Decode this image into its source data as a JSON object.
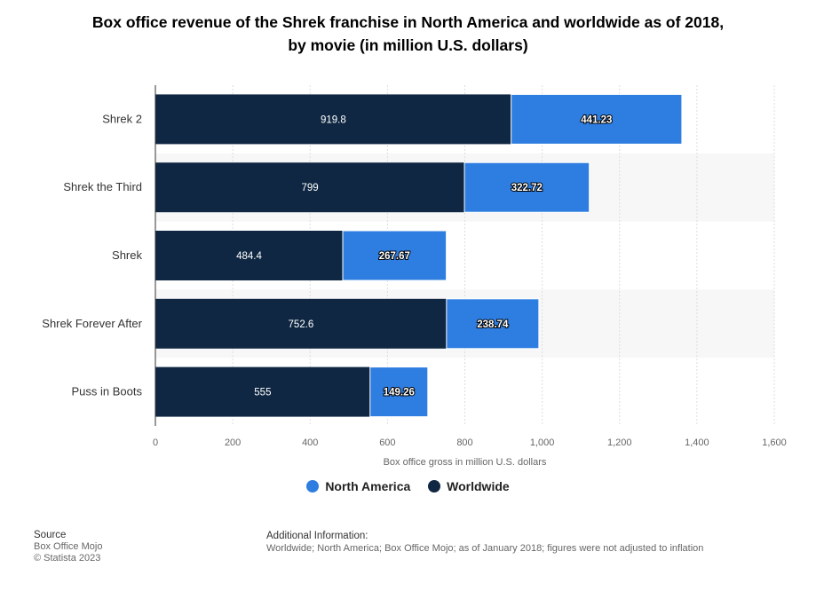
{
  "title_line1": "Box office revenue of the Shrek franchise in North America and worldwide as of 2018,",
  "title_line2": "by movie (in million U.S. dollars)",
  "legend": {
    "north_america": "North America",
    "worldwide": "Worldwide"
  },
  "footer": {
    "source_head": "Source",
    "source_name": "Box Office Mojo",
    "copyright": "© Statista 2023",
    "info_head": "Additional Information:",
    "info_text": "Worldwide; North America; Box Office Mojo; as of January 2018; figures were not adjusted to inflation"
  },
  "colors": {
    "worldwide": "#0f2742",
    "north_america": "#2e7de0",
    "band": "#f7f7f7",
    "grid": "#dddddd"
  },
  "chart_data": {
    "type": "bar",
    "orientation": "horizontal",
    "stacked": true,
    "categories": [
      "Shrek 2",
      "Shrek the Third",
      "Shrek",
      "Shrek Forever After",
      "Puss in Boots"
    ],
    "series": [
      {
        "name": "Worldwide",
        "values": [
          919.8,
          799,
          484.4,
          752.6,
          555
        ]
      },
      {
        "name": "North America",
        "values": [
          441.23,
          322.72,
          267.67,
          238.74,
          149.26
        ]
      }
    ],
    "xlabel": "Box office gross in million U.S. dollars",
    "ylabel": "",
    "xlim": [
      0,
      1600
    ],
    "xticks": [
      0,
      200,
      400,
      600,
      800,
      1000,
      1200,
      1400,
      1600
    ],
    "xtick_labels": [
      "0",
      "200",
      "400",
      "600",
      "800",
      "1,000",
      "1,200",
      "1,400",
      "1,600"
    ],
    "grid": true,
    "legend_position": "bottom"
  }
}
